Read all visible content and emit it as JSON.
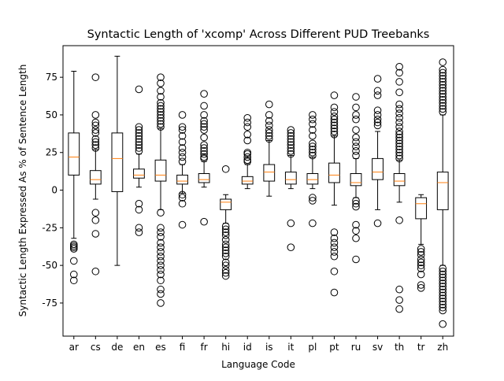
{
  "chart_data": {
    "type": "box",
    "title": "Syntactic Length of 'xcomp' Across Different PUD Treebanks",
    "xlabel": "Language Code",
    "ylabel": "Syntactic Length Expressed As % of Sentence Length",
    "ylim": [
      -97,
      96
    ],
    "yticks": [
      -75,
      -50,
      -25,
      0,
      25,
      50,
      75
    ],
    "grid": false,
    "legend": "none",
    "colors": {
      "box": "#000000",
      "median": "#ff7f0e",
      "flier": "#000000"
    },
    "categories": [
      "ar",
      "cs",
      "de",
      "en",
      "es",
      "fi",
      "fr",
      "hi",
      "id",
      "is",
      "it",
      "pl",
      "pt",
      "ru",
      "sv",
      "th",
      "tr",
      "zh"
    ],
    "boxes": [
      {
        "label": "ar",
        "whislo": -32,
        "q1": 10,
        "median": 22,
        "q3": 38,
        "whishi": 79,
        "fliers": [
          -36,
          -37,
          -38,
          -39,
          -47,
          -56,
          -60
        ]
      },
      {
        "label": "cs",
        "whislo": -6,
        "q1": 4,
        "median": 7,
        "q3": 13,
        "whishi": 27,
        "fliers": [
          28,
          30,
          32,
          34,
          38,
          40,
          43,
          45,
          50,
          75,
          -15,
          -20,
          -29,
          -54
        ]
      },
      {
        "label": "de",
        "whislo": -50,
        "q1": -1,
        "median": 21,
        "q3": 38,
        "whishi": 89,
        "fliers": []
      },
      {
        "label": "en",
        "whislo": 2,
        "q1": 8,
        "median": 10,
        "q3": 14,
        "whishi": 24,
        "fliers": [
          26,
          28,
          30,
          32,
          34,
          36,
          38,
          40,
          42,
          67,
          -9,
          -13,
          -25,
          -28
        ]
      },
      {
        "label": "es",
        "whislo": -13,
        "q1": 6,
        "median": 10,
        "q3": 20,
        "whishi": 41,
        "fliers": [
          42,
          44,
          46,
          48,
          50,
          52,
          54,
          56,
          58,
          62,
          66,
          71,
          75,
          -15,
          -25,
          -28,
          -31,
          -35,
          -38,
          -41,
          -44,
          -47,
          -50,
          -53,
          -56,
          -60,
          -66,
          -69,
          -75
        ]
      },
      {
        "label": "fi",
        "whislo": -2,
        "q1": 4,
        "median": 6,
        "q3": 10,
        "whishi": 17,
        "fliers": [
          19,
          22,
          25,
          28,
          32,
          36,
          40,
          42,
          50,
          -3,
          -5,
          -9,
          -23
        ]
      },
      {
        "label": "fr",
        "whislo": 2,
        "q1": 5,
        "median": 7,
        "q3": 11,
        "whishi": 19,
        "fliers": [
          21,
          22,
          24,
          26,
          28,
          30,
          35,
          40,
          42,
          44,
          46,
          50,
          56,
          64,
          -21
        ]
      },
      {
        "label": "hi",
        "whislo": -22,
        "q1": -13,
        "median": -8,
        "q3": -6,
        "whishi": -3,
        "fliers": [
          14,
          -24,
          -26,
          -28,
          -30,
          -33,
          -36,
          -38,
          -40,
          -42,
          -44,
          -48,
          -50,
          -53,
          -55,
          -57
        ]
      },
      {
        "label": "id",
        "whislo": 1,
        "q1": 4,
        "median": 6,
        "q3": 9,
        "whishi": 17,
        "fliers": [
          19,
          20,
          22,
          24,
          25,
          33,
          37,
          42,
          45,
          48
        ]
      },
      {
        "label": "is",
        "whislo": -4,
        "q1": 6,
        "median": 12,
        "q3": 17,
        "whishi": 33,
        "fliers": [
          34,
          36,
          38,
          40,
          43,
          46,
          50,
          57
        ]
      },
      {
        "label": "it",
        "whislo": 1,
        "q1": 4,
        "median": 7,
        "q3": 12,
        "whishi": 23,
        "fliers": [
          24,
          26,
          28,
          30,
          32,
          34,
          36,
          38,
          40,
          -22,
          -38
        ]
      },
      {
        "label": "pl",
        "whislo": 1,
        "q1": 4,
        "median": 7,
        "q3": 11,
        "whishi": 22,
        "fliers": [
          23,
          25,
          27,
          29,
          31,
          36,
          40,
          44,
          47,
          50,
          -5,
          -7,
          -22
        ]
      },
      {
        "label": "pt",
        "whislo": -10,
        "q1": 5,
        "median": 10,
        "q3": 18,
        "whishi": 36,
        "fliers": [
          37,
          39,
          41,
          43,
          45,
          47,
          49,
          52,
          55,
          63,
          -28,
          -32,
          -35,
          -38,
          -41,
          -44,
          -54,
          -68
        ]
      },
      {
        "label": "ru",
        "whislo": -5,
        "q1": 3,
        "median": 5,
        "q3": 11,
        "whishi": 21,
        "fliers": [
          23,
          26,
          29,
          32,
          35,
          40,
          47,
          50,
          55,
          62,
          -7,
          -9,
          -11,
          -23,
          -27,
          -32,
          -46
        ]
      },
      {
        "label": "sv",
        "whislo": -13,
        "q1": 7,
        "median": 12,
        "q3": 21,
        "whishi": 39,
        "fliers": [
          43,
          45,
          47,
          50,
          53,
          63,
          66,
          74,
          -22
        ]
      },
      {
        "label": "th",
        "whislo": -8,
        "q1": 3,
        "median": 6,
        "q3": 11,
        "whishi": 20,
        "fliers": [
          21,
          23,
          25,
          27,
          29,
          31,
          33,
          35,
          37,
          39,
          42,
          45,
          48,
          51,
          54,
          57,
          65,
          72,
          78,
          82,
          -20,
          -66,
          -73,
          -79
        ]
      },
      {
        "label": "tr",
        "whislo": -36,
        "q1": -19,
        "median": -9,
        "q3": -5,
        "whishi": -3,
        "fliers": [
          -39,
          -41,
          -43,
          -46,
          -48,
          -50,
          -52,
          -56,
          -63,
          -65
        ]
      },
      {
        "label": "zh",
        "whislo": -50,
        "q1": -13,
        "median": 5,
        "q3": 12,
        "whishi": 50,
        "fliers": [
          52,
          54,
          56,
          58,
          60,
          62,
          64,
          66,
          68,
          70,
          72,
          74,
          76,
          78,
          80,
          85,
          -52,
          -54,
          -56,
          -58,
          -60,
          -62,
          -64,
          -66,
          -68,
          -70,
          -72,
          -74,
          -76,
          -78,
          -80,
          -89
        ]
      }
    ]
  }
}
